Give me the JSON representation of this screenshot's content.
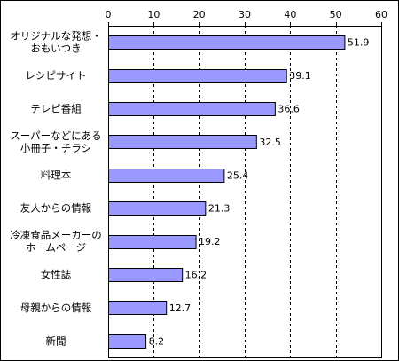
{
  "chart_data": {
    "type": "bar",
    "orientation": "horizontal",
    "categories": [
      [
        "オリジナルな発想・",
        "おもいつき"
      ],
      [
        "レシピサイト"
      ],
      [
        "テレビ番組"
      ],
      [
        "スーパーなどにある",
        "小冊子・チラシ"
      ],
      [
        "料理本"
      ],
      [
        "友人からの情報"
      ],
      [
        "冷凍食品メーカーの",
        "ホームページ"
      ],
      [
        "女性誌"
      ],
      [
        "母親からの情報"
      ],
      [
        "新聞"
      ]
    ],
    "values": [
      51.9,
      39.1,
      36.6,
      32.5,
      25.4,
      21.3,
      19.2,
      16.2,
      12.7,
      8.2
    ],
    "value_labels": [
      "51.9",
      "39.1",
      "36.6",
      "32.5",
      "25.4",
      "21.3",
      "19.2",
      "16.2",
      "12.7",
      "8.2"
    ],
    "xlim": [
      0,
      60
    ],
    "x_ticks": [
      "0",
      "10",
      "20",
      "30",
      "40",
      "50",
      "60"
    ],
    "x_axis_position": "top",
    "grid": "vertical dashed",
    "bar_color": "#9999ff",
    "bar_edge_color": "#000000",
    "title": "",
    "xlabel": "",
    "ylabel": ""
  }
}
